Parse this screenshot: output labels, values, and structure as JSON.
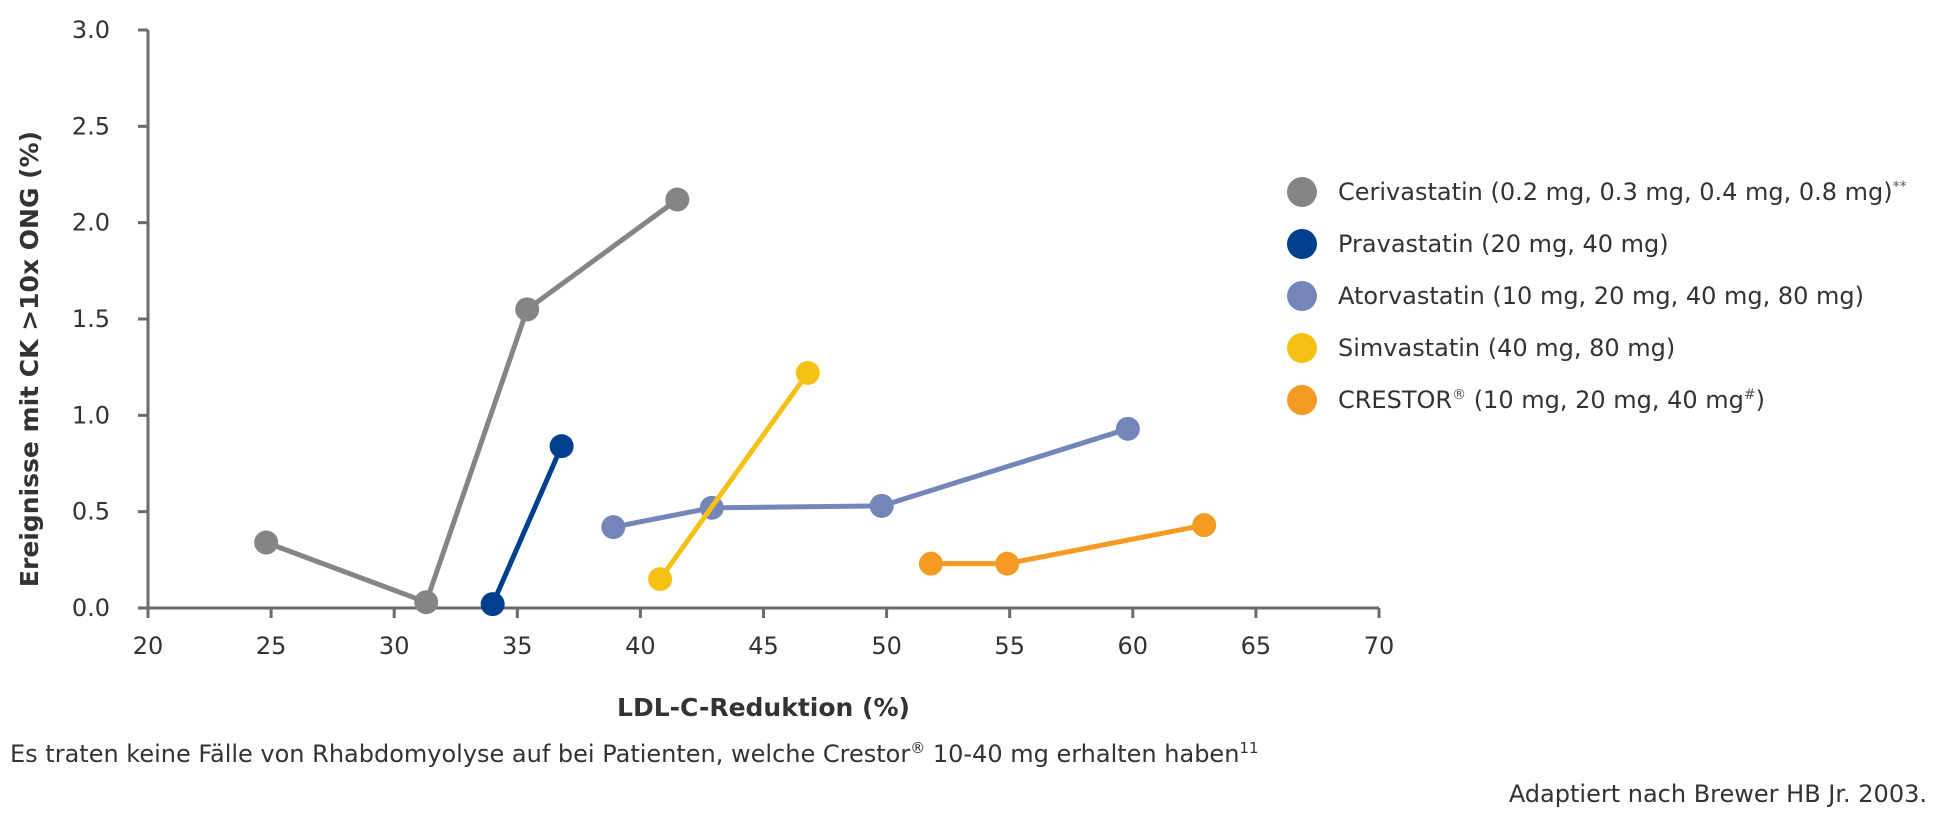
{
  "chart_data": {
    "type": "line",
    "xlabel": "LDL-C-Reduktion (%)",
    "ylabel": "Ereignisse mit CK >10x ONG (%)",
    "xlim": [
      20,
      70
    ],
    "ylim": [
      0,
      3.0
    ],
    "x_ticks": [
      "20",
      "25",
      "30",
      "35",
      "40",
      "45",
      "50",
      "55",
      "60",
      "65",
      "70"
    ],
    "y_ticks": [
      "0.0",
      "0.5",
      "1.0",
      "1.5",
      "2.0",
      "2.5",
      "3.0"
    ],
    "grid": false,
    "legend_position": "right",
    "series": [
      {
        "name": "Cerivastatin (0.2 mg, 0.3 mg, 0.4 mg, 0.8 mg)",
        "name_sup": "**",
        "color": "#858585",
        "points": [
          [
            24.8,
            0.34
          ],
          [
            31.3,
            0.03
          ],
          [
            35.4,
            1.55
          ],
          [
            41.5,
            2.12
          ]
        ]
      },
      {
        "name": "Pravastatin (20 mg, 40 mg)",
        "name_sup": "",
        "color": "#003f8c",
        "points": [
          [
            34.0,
            0.02
          ],
          [
            36.8,
            0.84
          ]
        ]
      },
      {
        "name": "Atorvastatin (10 mg, 20 mg, 40 mg, 80 mg)",
        "name_sup": "",
        "color": "#7486b8",
        "points": [
          [
            38.9,
            0.42
          ],
          [
            42.9,
            0.52
          ],
          [
            49.8,
            0.53
          ],
          [
            59.8,
            0.93
          ]
        ]
      },
      {
        "name": "Simvastatin (40 mg, 80 mg)",
        "name_sup": "",
        "color": "#f5c114",
        "points": [
          [
            40.8,
            0.15
          ],
          [
            46.8,
            1.22
          ]
        ]
      },
      {
        "name_parts": [
          "CRESTOR",
          "®",
          " (10 mg, 20 mg, 40 mg",
          "#",
          ")"
        ],
        "color": "#f59a23",
        "points": [
          [
            51.8,
            0.23
          ],
          [
            54.9,
            0.23
          ],
          [
            62.9,
            0.43
          ]
        ]
      }
    ]
  },
  "footnote": {
    "text_1": "Es traten keine Fälle von Rhabdomyolyse auf bei Patienten, welche Crestor",
    "sup_1": "®",
    "text_2": " 10-40 mg erhalten haben",
    "sup_2": "11"
  },
  "source": "Adaptiert nach Brewer HB Jr. 2003."
}
